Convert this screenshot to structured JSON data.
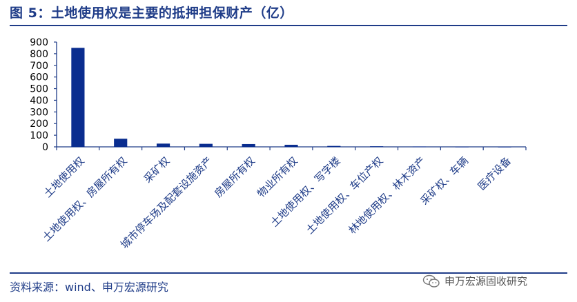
{
  "figure": {
    "title": "图 5：土地使用权是主要的抵押担保财产（亿）",
    "source": "资料来源：wind、申万宏源研究",
    "watermark_text": "申万宏源固收研究",
    "watermark_icon": "wechat-icon"
  },
  "colors": {
    "title": "#1f3c88",
    "bar": "#0a2d8f",
    "axis": "#1f3c88"
  },
  "chart_data": {
    "type": "bar",
    "categories": [
      "土地使用权",
      "土地使用权、房屋所有权",
      "采矿权",
      "城市停车场及配套设施资产",
      "房屋所有权",
      "物业所有权",
      "土地使用权、写字楼",
      "土地使用权、车位产权",
      "林地使用权、林木资产",
      "采矿权、车辆",
      "医疗设备"
    ],
    "values": [
      850,
      70,
      28,
      26,
      24,
      18,
      8,
      5,
      3,
      1,
      0.5
    ],
    "yticks": [
      0,
      100,
      200,
      300,
      400,
      500,
      600,
      700,
      800,
      900
    ],
    "ylim": [
      0,
      900
    ],
    "title": "",
    "xlabel": "",
    "ylabel": "",
    "grid": false,
    "legend": "none"
  }
}
